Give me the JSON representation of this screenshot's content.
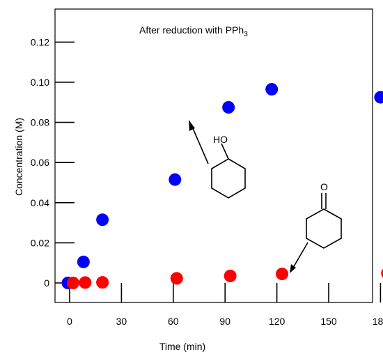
{
  "chart_data": {
    "type": "scatter",
    "title": "After reduction with PPh",
    "title_subscript": "3",
    "xlabel": "Time (min)",
    "ylabel": "Concentration (M)",
    "xlim": [
      -8,
      184
    ],
    "ylim": [
      -0.008,
      0.132
    ],
    "x_ticks": [
      0,
      30,
      60,
      90,
      120,
      150,
      180
    ],
    "y_ticks": [
      0,
      0.02,
      0.04,
      0.06,
      0.08,
      0.1,
      0.12
    ],
    "x_tick_labels": [
      "0",
      "30",
      "60",
      "90",
      "120",
      "150",
      "180"
    ],
    "y_tick_labels": [
      "0",
      "0.02",
      "0.04",
      "0.06",
      "0.08",
      "0.10",
      "0.12"
    ],
    "grid": false,
    "series": [
      {
        "color": "#0000ff",
        "x": [
          -1,
          8,
          19,
          61,
          92,
          117,
          180
        ],
        "y": [
          0.0,
          0.0105,
          0.0315,
          0.0515,
          0.0875,
          0.0965,
          0.0925
        ]
      },
      {
        "color": "#ff0000",
        "x": [
          2,
          9,
          19,
          62,
          93,
          123,
          184
        ],
        "y": [
          0.0,
          0.0002,
          0.0003,
          0.0023,
          0.0035,
          0.0045,
          0.0048
        ]
      }
    ],
    "annotations": {
      "alcohol_label": "HO",
      "alcohol_label_color": "#0000ff",
      "ketone_label": "O",
      "ketone_label_color": "#ff0000"
    }
  }
}
